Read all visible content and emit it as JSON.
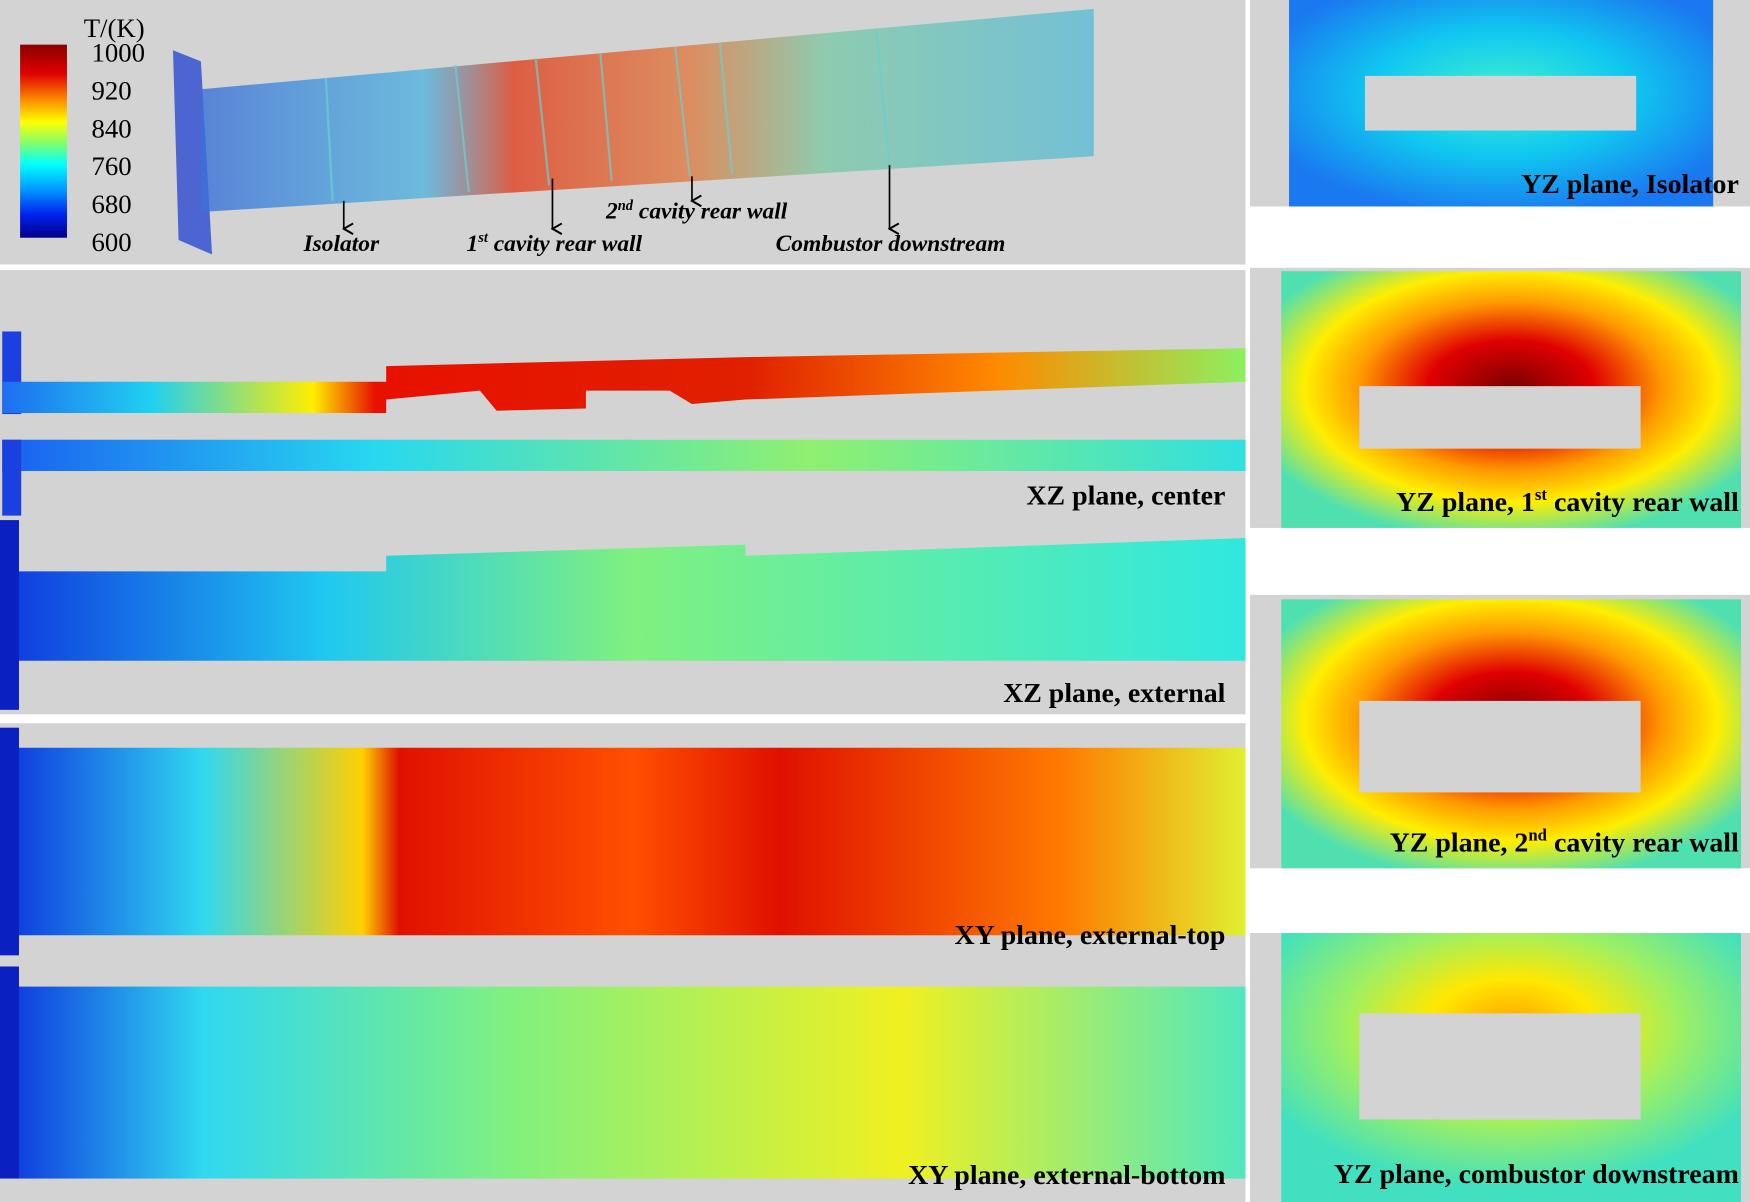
{
  "colorbar": {
    "title": "T/(K)",
    "ticks": [
      "1000",
      "920",
      "840",
      "760",
      "680",
      "600"
    ]
  },
  "annotations": [
    {
      "text": "Isolator"
    },
    {
      "number": "1",
      "superscript": "st",
      "text": " cavity rear wall"
    },
    {
      "number": "2",
      "superscript": "nd",
      "text": " cavity rear wall"
    },
    {
      "text": "Combustor downstream"
    }
  ],
  "left_panels": [
    {
      "label": "XZ plane, center"
    },
    {
      "label": "XZ plane, external"
    },
    {
      "label": "XY plane, external-top"
    },
    {
      "label": "XY plane, external-bottom"
    }
  ],
  "right_panels": [
    {
      "prefix": "YZ plane, Isolator"
    },
    {
      "prefix": "YZ plane, ",
      "number": "1",
      "superscript": "st",
      "suffix": " cavity rear wall"
    },
    {
      "prefix": "YZ plane, ",
      "number": "2",
      "superscript": "nd",
      "suffix": " cavity rear wall"
    },
    {
      "prefix": "YZ plane, combustor downstream"
    }
  ]
}
